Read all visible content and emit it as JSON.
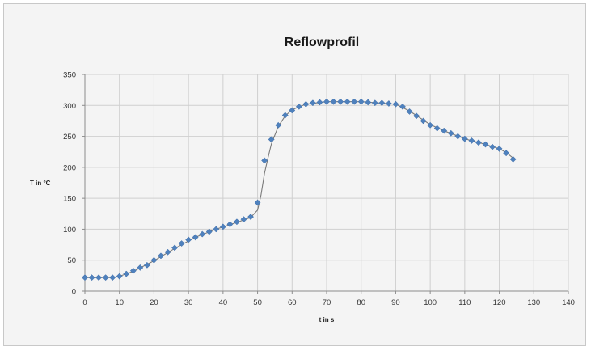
{
  "chart_data": {
    "type": "scatter",
    "title": "Reflowprofil",
    "xlabel": "t in s",
    "ylabel": "T in °C",
    "xlim": [
      0,
      140
    ],
    "ylim": [
      0,
      350
    ],
    "xticks": [
      0,
      10,
      20,
      30,
      40,
      50,
      60,
      70,
      80,
      90,
      100,
      110,
      120,
      130,
      140
    ],
    "yticks": [
      0,
      50,
      100,
      150,
      200,
      250,
      300,
      350
    ],
    "grid": true,
    "legend": "none",
    "colors": {
      "markers": "#4f81bd",
      "line": "#7a7a7a"
    },
    "series": [
      {
        "marker": "diamond",
        "points": [
          [
            0,
            22
          ],
          [
            2,
            22
          ],
          [
            4,
            22
          ],
          [
            6,
            22
          ],
          [
            8,
            22
          ],
          [
            10,
            24
          ],
          [
            12,
            28
          ],
          [
            14,
            33
          ],
          [
            16,
            38
          ],
          [
            18,
            42
          ],
          [
            20,
            50
          ],
          [
            22,
            57
          ],
          [
            24,
            63
          ],
          [
            26,
            70
          ],
          [
            28,
            77
          ],
          [
            30,
            83
          ],
          [
            32,
            87
          ],
          [
            34,
            92
          ],
          [
            36,
            96
          ],
          [
            38,
            100
          ],
          [
            40,
            104
          ],
          [
            42,
            108
          ],
          [
            44,
            112
          ],
          [
            46,
            116
          ],
          [
            48,
            120
          ],
          [
            50,
            143
          ],
          [
            52,
            211
          ],
          [
            54,
            245
          ],
          [
            56,
            268
          ],
          [
            58,
            284
          ],
          [
            60,
            292
          ],
          [
            62,
            298
          ],
          [
            64,
            302
          ],
          [
            66,
            304
          ],
          [
            68,
            305
          ],
          [
            70,
            306
          ],
          [
            72,
            306
          ],
          [
            74,
            306
          ],
          [
            76,
            306
          ],
          [
            78,
            306
          ],
          [
            80,
            306
          ],
          [
            82,
            305
          ],
          [
            84,
            304
          ],
          [
            86,
            304
          ],
          [
            88,
            303
          ],
          [
            90,
            302
          ],
          [
            92,
            298
          ],
          [
            94,
            290
          ],
          [
            96,
            283
          ],
          [
            98,
            275
          ],
          [
            100,
            268
          ],
          [
            102,
            263
          ],
          [
            104,
            259
          ],
          [
            106,
            255
          ],
          [
            108,
            250
          ],
          [
            110,
            246
          ],
          [
            112,
            243
          ],
          [
            114,
            240
          ],
          [
            116,
            237
          ],
          [
            118,
            233
          ],
          [
            120,
            230
          ],
          [
            122,
            223
          ],
          [
            124,
            213
          ]
        ]
      },
      {
        "style": "line",
        "points": [
          [
            0,
            22
          ],
          [
            8,
            22
          ],
          [
            10,
            24
          ],
          [
            14,
            32
          ],
          [
            20,
            49
          ],
          [
            26,
            69
          ],
          [
            32,
            87
          ],
          [
            38,
            100
          ],
          [
            44,
            111
          ],
          [
            48,
            119
          ],
          [
            50,
            131
          ],
          [
            51,
            155
          ],
          [
            52,
            190
          ],
          [
            53,
            215
          ],
          [
            54,
            238
          ],
          [
            56,
            266
          ],
          [
            58,
            283
          ],
          [
            60,
            293
          ],
          [
            64,
            302
          ],
          [
            70,
            306
          ],
          [
            80,
            306
          ],
          [
            90,
            302
          ],
          [
            94,
            291
          ],
          [
            100,
            269
          ],
          [
            104,
            259
          ],
          [
            110,
            246
          ],
          [
            116,
            237
          ],
          [
            120,
            230
          ],
          [
            122,
            224
          ],
          [
            124,
            215
          ]
        ]
      }
    ]
  }
}
